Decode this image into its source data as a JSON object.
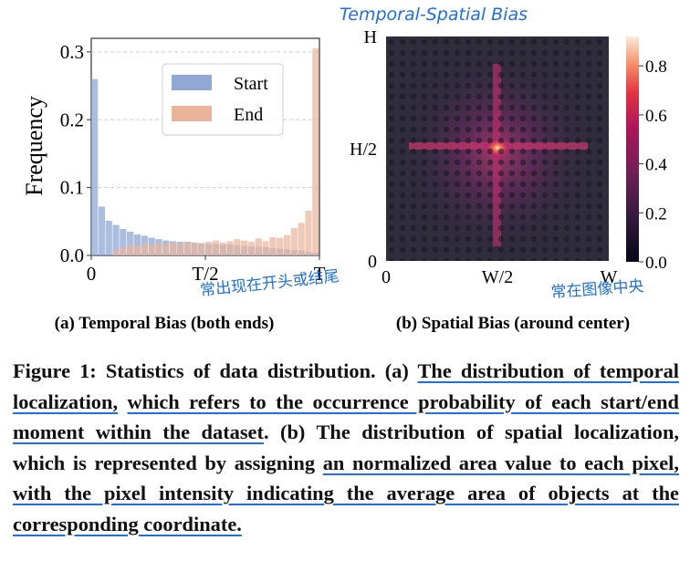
{
  "panels": {
    "a": {
      "chart_data": {
        "type": "bar",
        "xlabel": "",
        "ylabel": "Frequency",
        "ylim": [
          0,
          0.32
        ],
        "yticks": [
          "0.0",
          "0.1",
          "0.2",
          "0.3"
        ],
        "xticks": [
          "0",
          "T/2",
          "T"
        ],
        "legend": "top-right",
        "grid": "horizontal dashed",
        "series": [
          {
            "name": "Start",
            "color": "#8fa8d6",
            "values": [
              0.26,
              0.072,
              0.051,
              0.045,
              0.039,
              0.035,
              0.031,
              0.029,
              0.026,
              0.024,
              0.022,
              0.021,
              0.02,
              0.02,
              0.019,
              0.018,
              0.017,
              0.017,
              0.016,
              0.016,
              0.015,
              0.014,
              0.013,
              0.013,
              0.012,
              0.011,
              0.01,
              0.009,
              0.008,
              0.007,
              0.005,
              0.004
            ]
          },
          {
            "name": "End",
            "color": "#eab39a",
            "values": [
              0.0,
              0.0,
              0.0,
              0.008,
              0.012,
              0.016,
              0.014,
              0.017,
              0.016,
              0.018,
              0.017,
              0.019,
              0.017,
              0.02,
              0.019,
              0.018,
              0.02,
              0.022,
              0.019,
              0.021,
              0.024,
              0.022,
              0.02,
              0.025,
              0.021,
              0.027,
              0.026,
              0.03,
              0.04,
              0.048,
              0.066,
              0.305
            ]
          }
        ]
      },
      "label": "(a) Temporal Bias (both ends)",
      "handwritten": "常出现在开头或结尾"
    },
    "b": {
      "chart_data": {
        "type": "heatmap",
        "xticks": [
          "0",
          "W/2",
          "W"
        ],
        "yticks": [
          "0",
          "H/2",
          "H"
        ],
        "colorbar_ticks": [
          "0.0",
          "0.2",
          "0.4",
          "0.6",
          "0.8"
        ],
        "colorbar_range": [
          0,
          0.92
        ],
        "colormap": "rocket"
      },
      "label": "(b) Spatial Bias (around center)",
      "handwritten_top": "Temporal-Spatial Bias",
      "handwritten_bottom": "常在图像中央"
    }
  },
  "caption": {
    "prefix": "Figure 1: Statistics of data distribution. (a) ",
    "u1": "The distribution of temporal localization,",
    "mid1": " ",
    "u2": "which refers to the occurrence probability of each start/end moment within the dataset",
    "mid2": ". (b) The distribution of spatial localization, which is represented by assigning ",
    "u3": "an normalized area value to each pixel, with the pixel intensity indicating the average area of objects at the corresponding coordinate.",
    "suffix": ""
  },
  "colors": {
    "annotation": "#1f6fe0",
    "start": "#8fa8d6",
    "end": "#eab39a"
  }
}
